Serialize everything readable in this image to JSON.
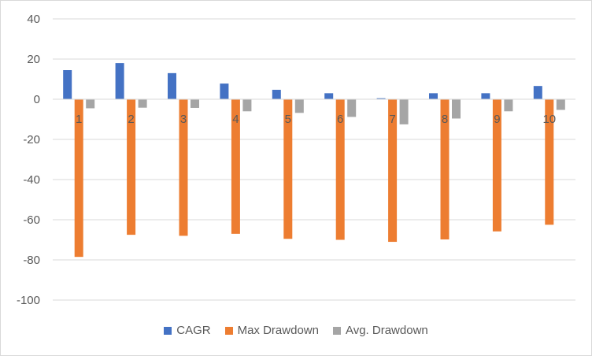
{
  "chart_data": {
    "type": "bar",
    "title": "",
    "xlabel": "",
    "ylabel": "",
    "ylim": [
      -100,
      40
    ],
    "yticks": [
      40,
      20,
      0,
      -20,
      -40,
      -60,
      -80,
      -100
    ],
    "categories": [
      "1",
      "2",
      "3",
      "4",
      "5",
      "6",
      "7",
      "8",
      "9",
      "10"
    ],
    "series": [
      {
        "name": "CAGR",
        "color": "#4472C4",
        "values": [
          14.5,
          18,
          13,
          7.8,
          4.7,
          3,
          0.5,
          3,
          3,
          6.6
        ]
      },
      {
        "name": "Max Drawdown",
        "color": "#ED7D31",
        "values": [
          -78.5,
          -67.5,
          -68,
          -67,
          -69.5,
          -70,
          -71,
          -69.8,
          -65.8,
          -62.5
        ]
      },
      {
        "name": "Avg. Drawdown",
        "color": "#A5A5A5",
        "values": [
          -4.5,
          -4.2,
          -4.3,
          -6,
          -6.8,
          -8.8,
          -12.5,
          -9.6,
          -6,
          -5.3
        ]
      }
    ],
    "grid": true,
    "legend_position": "bottom"
  }
}
